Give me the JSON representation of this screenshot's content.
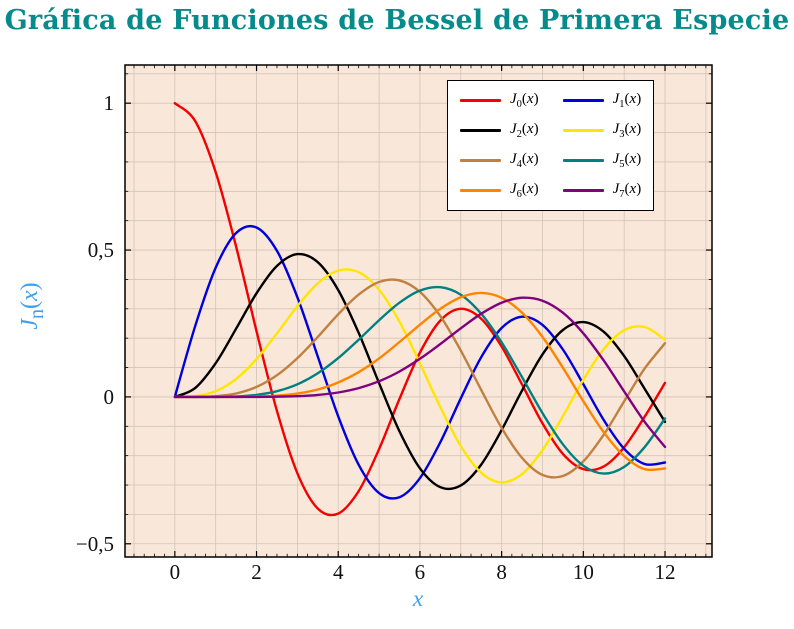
{
  "title": "Gráfica de Funciones de Bessel de Primera Especie",
  "styles": {
    "title_color": "#058b8b",
    "axis_label_color": "#3fa0f0",
    "plot_background": "#f9e8da",
    "grid_color": "#d3c4b6",
    "frame_color": "#000000",
    "tick_color": "#000000",
    "tick_label_color": "#111111",
    "legend_background": "#ffffff",
    "legend_border": "#000000"
  },
  "axes": {
    "xlabel": "x",
    "ylabel": {
      "base": "J",
      "sub": "n",
      "open": "(",
      "var": "x",
      "close": ")"
    }
  },
  "chart_data": {
    "type": "line",
    "title": "Gráfica de Funciones de Bessel de Primera Especie",
    "xlabel": "x",
    "ylabel": "J_n(x)",
    "xlim": [
      -1.22,
      13.15
    ],
    "ylim": [
      -0.545,
      1.13
    ],
    "grid": true,
    "legend_position": "top-right",
    "x_ticks": [
      0,
      2,
      4,
      6,
      8,
      10,
      12
    ],
    "x_tick_labels": [
      "0",
      "2",
      "4",
      "6",
      "8",
      "10",
      "12"
    ],
    "y_ticks": [
      1,
      0.5,
      0,
      -0.5
    ],
    "y_tick_labels": [
      "1",
      "0,5",
      "0",
      "−0,5"
    ],
    "x_minor_step": 0.25,
    "y_minor_step": 0.1,
    "x_grid_step": 1,
    "y_grid_step": 0.1,
    "x": [
      0,
      0.5,
      1,
      1.5,
      2,
      2.5,
      3,
      3.5,
      4,
      4.5,
      5,
      5.5,
      6,
      6.5,
      7,
      7.5,
      8,
      8.5,
      9,
      9.5,
      10,
      10.5,
      11,
      11.5,
      12
    ],
    "series": [
      {
        "id": "J0",
        "name": "J_0(x)",
        "base": "J",
        "sub": "0",
        "var": "x",
        "color": "#f40000",
        "values": [
          1.0,
          0.9385,
          0.7652,
          0.5118,
          0.2239,
          -0.0484,
          -0.2601,
          -0.3801,
          -0.3971,
          -0.3205,
          -0.1776,
          -0.0068,
          0.1506,
          0.2601,
          0.3001,
          0.2663,
          0.1717,
          0.0419,
          -0.0903,
          -0.1939,
          -0.2459,
          -0.2366,
          -0.1712,
          -0.0677,
          0.0477
        ]
      },
      {
        "id": "J1",
        "name": "J_1(x)",
        "base": "J",
        "sub": "1",
        "var": "x",
        "color": "#0000dd",
        "values": [
          0.0,
          0.2423,
          0.4401,
          0.5579,
          0.5767,
          0.4971,
          0.3391,
          0.1374,
          -0.066,
          -0.2311,
          -0.3276,
          -0.3414,
          -0.2767,
          -0.1538,
          -0.0047,
          0.1352,
          0.2346,
          0.2731,
          0.2453,
          0.1613,
          0.0435,
          -0.0789,
          -0.1768,
          -0.2284,
          -0.2234
        ]
      },
      {
        "id": "J2",
        "name": "J_2(x)",
        "base": "J",
        "sub": "2",
        "var": "x",
        "color": "#000000",
        "values": [
          0.0,
          0.0306,
          0.1149,
          0.2321,
          0.3528,
          0.4461,
          0.4861,
          0.4586,
          0.3641,
          0.2178,
          0.0466,
          -0.1173,
          -0.2429,
          -0.3074,
          -0.3014,
          -0.2303,
          -0.113,
          0.0223,
          0.1448,
          0.2279,
          0.2546,
          0.2216,
          0.139,
          0.0279,
          -0.0849
        ]
      },
      {
        "id": "J3",
        "name": "J_3(x)",
        "base": "J",
        "sub": "3",
        "var": "x",
        "color": "#ffe500",
        "values": [
          0.0,
          0.0026,
          0.0196,
          0.061,
          0.1289,
          0.2166,
          0.3091,
          0.3868,
          0.4302,
          0.4247,
          0.3648,
          0.2561,
          0.1148,
          -0.0353,
          -0.1676,
          -0.2581,
          -0.2911,
          -0.2626,
          -0.1809,
          -0.0653,
          0.0584,
          0.1633,
          0.2273,
          0.2381,
          0.1951
        ]
      },
      {
        "id": "J4",
        "name": "J_4(x)",
        "base": "J",
        "sub": "4",
        "var": "x",
        "color": "#bf8040",
        "values": [
          0.0,
          0.0002,
          0.0025,
          0.0118,
          0.034,
          0.0738,
          0.132,
          0.2044,
          0.2811,
          0.3484,
          0.3912,
          0.3967,
          0.3576,
          0.2748,
          0.1578,
          0.0238,
          -0.1054,
          -0.2077,
          -0.2655,
          -0.2691,
          -0.2196,
          -0.1283,
          -0.015,
          0.0963,
          0.1825
        ]
      },
      {
        "id": "J5",
        "name": "J_5(x)",
        "base": "J",
        "sub": "5",
        "var": "x",
        "color": "#008080",
        "values": [
          0.0,
          0.0,
          0.0002,
          0.0018,
          0.007,
          0.0195,
          0.043,
          0.0804,
          0.1321,
          0.1947,
          0.2611,
          0.3209,
          0.3621,
          0.3736,
          0.3479,
          0.2833,
          0.1858,
          0.0671,
          -0.055,
          -0.1613,
          -0.2341,
          -0.2611,
          -0.2383,
          -0.1711,
          -0.0735
        ]
      },
      {
        "id": "J6",
        "name": "J_6(x)",
        "base": "J",
        "sub": "6",
        "var": "x",
        "color": "#ff8400",
        "values": [
          0.0,
          0.0,
          0.0,
          0.0002,
          0.0012,
          0.0042,
          0.0114,
          0.0254,
          0.0491,
          0.0843,
          0.131,
          0.1868,
          0.2458,
          0.2999,
          0.3392,
          0.3541,
          0.3376,
          0.2867,
          0.2043,
          0.0993,
          -0.0145,
          -0.1203,
          -0.2016,
          -0.2458,
          -0.2437
        ]
      },
      {
        "id": "J7",
        "name": "J_7(x)",
        "base": "J",
        "sub": "7",
        "var": "x",
        "color": "#800080",
        "values": [
          0.0,
          0.0,
          0.0,
          0.0,
          0.0002,
          0.0008,
          0.0025,
          0.0067,
          0.0152,
          0.03,
          0.0534,
          0.0866,
          0.1296,
          0.1801,
          0.2336,
          0.2832,
          0.3206,
          0.3377,
          0.3275,
          0.2868,
          0.2167,
          0.1236,
          0.0184,
          -0.0846,
          -0.1703
        ]
      }
    ]
  }
}
